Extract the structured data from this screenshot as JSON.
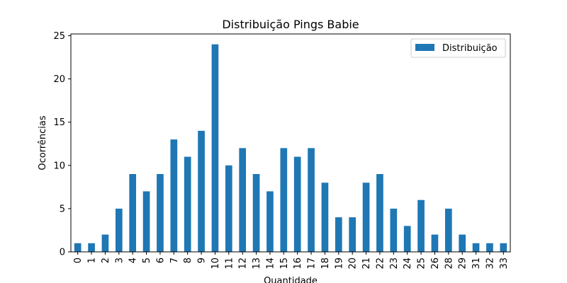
{
  "chart_data": {
    "type": "bar",
    "title": "Distribuição Pings Babie",
    "xlabel": "Quantidade",
    "ylabel": "Ocorrências",
    "categories": [
      "0",
      "1",
      "2",
      "3",
      "4",
      "5",
      "6",
      "7",
      "8",
      "9",
      "10",
      "11",
      "12",
      "13",
      "14",
      "15",
      "16",
      "17",
      "18",
      "19",
      "20",
      "21",
      "22",
      "23",
      "24",
      "25",
      "26",
      "28",
      "29",
      "31",
      "32",
      "33"
    ],
    "series": [
      {
        "name": "Distribuição",
        "values": [
          1,
          1,
          2,
          5,
          9,
          7,
          9,
          13,
          11,
          14,
          24,
          10,
          12,
          9,
          7,
          12,
          11,
          12,
          8,
          4,
          4,
          8,
          9,
          5,
          3,
          6,
          2,
          5,
          2,
          1,
          1,
          1
        ]
      }
    ],
    "ylim": [
      0,
      25.2
    ],
    "yticks": [
      0,
      5,
      10,
      15,
      20,
      25
    ],
    "grid": false,
    "legend_position": "top-right",
    "colors": {
      "bar": "#1f77b4"
    }
  }
}
